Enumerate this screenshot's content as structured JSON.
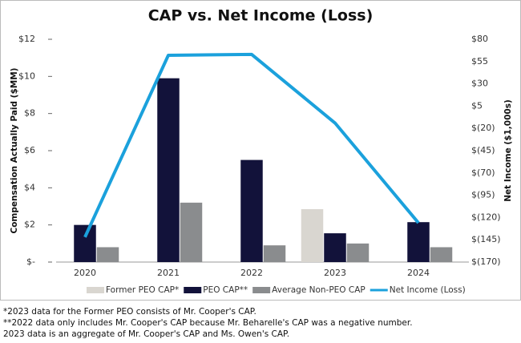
{
  "chart_data": {
    "type": "bar_line",
    "title": "CAP vs. Net Income (Loss)",
    "ylabel": "Compensation Actually Paid ($MM)",
    "y2label": "Net Income ($1,000s)",
    "categories": [
      "2020",
      "2021",
      "2022",
      "2023",
      "2024"
    ],
    "ylim": [
      0,
      12
    ],
    "yticks": [
      {
        "value": 0,
        "label": "$-"
      },
      {
        "value": 2,
        "label": "$2"
      },
      {
        "value": 4,
        "label": "$4"
      },
      {
        "value": 6,
        "label": "$6"
      },
      {
        "value": 8,
        "label": "$8"
      },
      {
        "value": 10,
        "label": "$10"
      },
      {
        "value": 12,
        "label": "$12"
      }
    ],
    "y2lim": [
      -170,
      80
    ],
    "y2ticks": [
      {
        "value": -170,
        "label": "$(170)"
      },
      {
        "value": -145,
        "label": "$(145)"
      },
      {
        "value": -120,
        "label": "$(120)"
      },
      {
        "value": -95,
        "label": "$(95)"
      },
      {
        "value": -70,
        "label": "$(70)"
      },
      {
        "value": -45,
        "label": "$(45)"
      },
      {
        "value": -20,
        "label": "$(20)"
      },
      {
        "value": 5,
        "label": "$5"
      },
      {
        "value": 30,
        "label": "$30"
      },
      {
        "value": 55,
        "label": "$55"
      },
      {
        "value": 80,
        "label": "$80"
      }
    ],
    "series": [
      {
        "name": "Former PEO CAP*",
        "color": "#d9d6d0",
        "values": [
          null,
          null,
          null,
          2.85,
          null
        ]
      },
      {
        "name": "PEO CAP**",
        "color": "#12123a",
        "values": [
          2.0,
          9.9,
          5.5,
          1.55,
          2.15
        ]
      },
      {
        "name": "Average Non-PEO CAP",
        "color": "#8a8c8e",
        "values": [
          0.8,
          3.2,
          0.9,
          1.0,
          0.8
        ]
      },
      {
        "name": "Net Income (Loss)",
        "color": "#1ba1dc",
        "axis": "y2",
        "values": [
          -142,
          62,
          63,
          -14,
          -126
        ]
      }
    ],
    "footnotes": [
      "*2023 data for the Former PEO consists of Mr. Cooper's CAP.",
      "**2022 data only includes Mr. Cooper's CAP because Mr. Beharelle's CAP was a negative number.",
      "2023 data is an aggregate of Mr. Cooper's CAP and Ms. Owen's CAP."
    ]
  }
}
